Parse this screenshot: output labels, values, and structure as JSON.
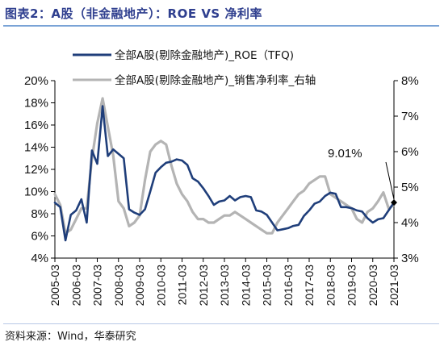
{
  "title": "图表2：A股（非金融地产）：ROE VS 净利率",
  "source": "资料来源：Wind，华泰研究",
  "chart_data": {
    "type": "line",
    "x_ticks": [
      "2005-03",
      "2006-03",
      "2007-03",
      "2008-03",
      "2009-03",
      "2010-03",
      "2011-03",
      "2012-03",
      "2013-03",
      "2014-03",
      "2015-03",
      "2016-03",
      "2017-03",
      "2018-03",
      "2019-03",
      "2020-03",
      "2021-03"
    ],
    "y_left": {
      "ticks": [
        "4%",
        "6%",
        "8%",
        "10%",
        "12%",
        "14%",
        "16%",
        "18%",
        "20%"
      ],
      "ylim": [
        4,
        20
      ]
    },
    "y_right": {
      "ticks": [
        "3%",
        "4%",
        "5%",
        "6%",
        "7%",
        "8%"
      ],
      "ylim": [
        3,
        8
      ]
    },
    "annotation": "9.01%",
    "legend_position": "top-right",
    "series": [
      {
        "name": "全部A股(剔除金融地产)_ROE（TFQ)",
        "axis": "left",
        "color": "#1f3e7a",
        "x": [
          "2005-03",
          "2005-06",
          "2005-09",
          "2005-12",
          "2006-03",
          "2006-06",
          "2006-09",
          "2006-12",
          "2007-03",
          "2007-06",
          "2007-09",
          "2007-12",
          "2008-03",
          "2008-06",
          "2008-09",
          "2008-12",
          "2009-03",
          "2009-06",
          "2009-09",
          "2009-12",
          "2010-03",
          "2010-06",
          "2010-09",
          "2010-12",
          "2011-03",
          "2011-06",
          "2011-09",
          "2011-12",
          "2012-03",
          "2012-06",
          "2012-09",
          "2012-12",
          "2013-03",
          "2013-06",
          "2013-09",
          "2013-12",
          "2014-03",
          "2014-06",
          "2014-09",
          "2014-12",
          "2015-03",
          "2015-06",
          "2015-09",
          "2015-12",
          "2016-03",
          "2016-06",
          "2016-09",
          "2016-12",
          "2017-03",
          "2017-06",
          "2017-09",
          "2017-12",
          "2018-03",
          "2018-06",
          "2018-09",
          "2018-12",
          "2019-03",
          "2019-06",
          "2019-09",
          "2019-12",
          "2020-03",
          "2020-06",
          "2020-09",
          "2020-12",
          "2021-03"
        ],
        "values": [
          9.0,
          8.6,
          5.6,
          7.9,
          8.3,
          9.3,
          7.2,
          13.7,
          12.5,
          17.7,
          13.2,
          13.8,
          13.4,
          13.0,
          8.4,
          8.1,
          7.9,
          8.4,
          10.0,
          11.7,
          12.2,
          12.6,
          12.7,
          12.9,
          12.8,
          12.4,
          11.2,
          10.9,
          10.3,
          9.6,
          8.8,
          9.1,
          9.2,
          9.6,
          9.2,
          9.5,
          9.6,
          9.5,
          8.3,
          8.2,
          7.9,
          7.2,
          6.5,
          6.6,
          6.7,
          6.9,
          7.0,
          7.8,
          8.3,
          8.9,
          9.1,
          9.6,
          9.9,
          9.8,
          8.6,
          8.6,
          8.5,
          8.3,
          8.2,
          7.6,
          7.2,
          7.5,
          7.6,
          8.3,
          9.01
        ]
      },
      {
        "name": "全部A股(剔除金融地产)_销售净利率_右轴",
        "axis": "right",
        "color": "#b4b4b4",
        "x": [
          "2005-03",
          "2005-06",
          "2005-09",
          "2005-12",
          "2006-03",
          "2006-06",
          "2006-09",
          "2006-12",
          "2007-03",
          "2007-06",
          "2007-09",
          "2007-12",
          "2008-03",
          "2008-06",
          "2008-09",
          "2008-12",
          "2009-03",
          "2009-06",
          "2009-09",
          "2009-12",
          "2010-03",
          "2010-06",
          "2010-09",
          "2010-12",
          "2011-03",
          "2011-06",
          "2011-09",
          "2011-12",
          "2012-03",
          "2012-06",
          "2012-09",
          "2012-12",
          "2013-03",
          "2013-06",
          "2013-09",
          "2013-12",
          "2014-03",
          "2014-06",
          "2014-09",
          "2014-12",
          "2015-03",
          "2015-06",
          "2015-09",
          "2015-12",
          "2016-03",
          "2016-06",
          "2016-09",
          "2016-12",
          "2017-03",
          "2017-06",
          "2017-09",
          "2017-12",
          "2018-03",
          "2018-06",
          "2018-09",
          "2018-12",
          "2019-03",
          "2019-06",
          "2019-09",
          "2019-12",
          "2020-03",
          "2020-06",
          "2020-09",
          "2020-12",
          "2021-03"
        ],
        "values": [
          4.8,
          4.5,
          3.7,
          3.8,
          4.1,
          4.4,
          4.4,
          5.8,
          6.8,
          7.5,
          6.7,
          5.9,
          4.6,
          4.4,
          3.9,
          4.0,
          4.2,
          5.2,
          6.0,
          6.2,
          6.3,
          6.2,
          5.6,
          5.1,
          4.8,
          4.6,
          4.3,
          4.1,
          4.1,
          4.0,
          4.0,
          4.1,
          4.2,
          4.2,
          4.3,
          4.2,
          4.1,
          4.0,
          3.9,
          3.8,
          3.7,
          3.7,
          4.0,
          4.2,
          4.4,
          4.6,
          4.8,
          4.9,
          5.1,
          5.2,
          5.3,
          5.3,
          4.8,
          4.7,
          4.6,
          4.5,
          4.4,
          4.1,
          4.0,
          4.3,
          4.4,
          4.6,
          4.85,
          4.4,
          4.5
        ]
      }
    ]
  }
}
